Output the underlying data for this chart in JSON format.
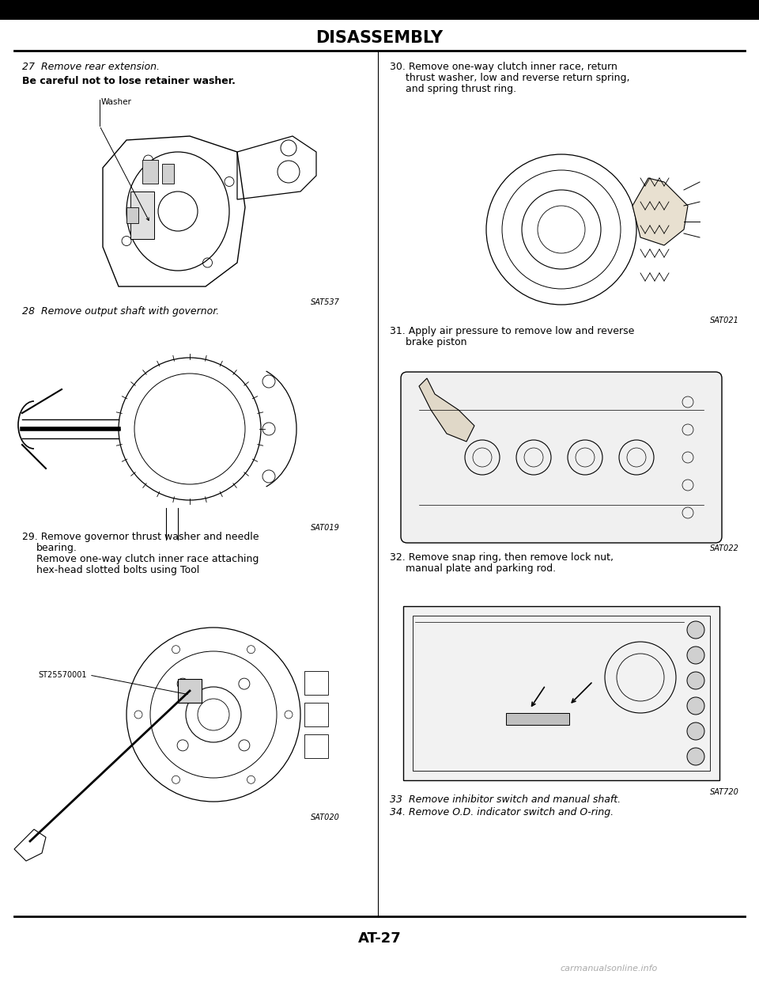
{
  "title": "DISASSEMBLY",
  "page_number": "AT-27",
  "watermark": "carmanualsonline.info",
  "background_color": "#ffffff",
  "header_bg": "#000000",
  "left_column": {
    "step27_num": "27",
    "step27_title": "Remove rear extension.",
    "step27_note": "Be careful not to lose retainer washer.",
    "step27_label": "Washer",
    "step27_code": "SAT537",
    "step28_num": "28",
    "step28_title": "Remove output shaft with governor.",
    "step28_code": "SAT019",
    "step29_num": "29.",
    "step29_line1": "Remove governor thrust washer and needle",
    "step29_line2": "bearing.",
    "step29_line3": "Remove one-way clutch inner race attaching",
    "step29_line4": "hex-head slotted bolts using Tool",
    "step29_label": "ST25570001",
    "step29_code": "SAT020"
  },
  "right_column": {
    "step30_num": "30.",
    "step30_line1": "Remove one-way clutch inner race, return",
    "step30_line2": "thrust washer, low and reverse return spring,",
    "step30_line3": "and spring thrust ring.",
    "step30_code": "SAT021",
    "step31_num": "31.",
    "step31_line1": "Apply air pressure to remove low and reverse",
    "step31_line2": "brake piston",
    "step31_code": "SAT022",
    "step32_num": "32.",
    "step32_line1": "Remove snap ring, then remove lock nut,",
    "step32_line2": "manual plate and parking rod.",
    "step32_code": "SAT720",
    "step33_num": "33",
    "step33_text": "Remove inhibitor switch and manual shaft.",
    "step34_num": "34.",
    "step34_text": "Remove O.D. indicator switch and O-ring."
  }
}
